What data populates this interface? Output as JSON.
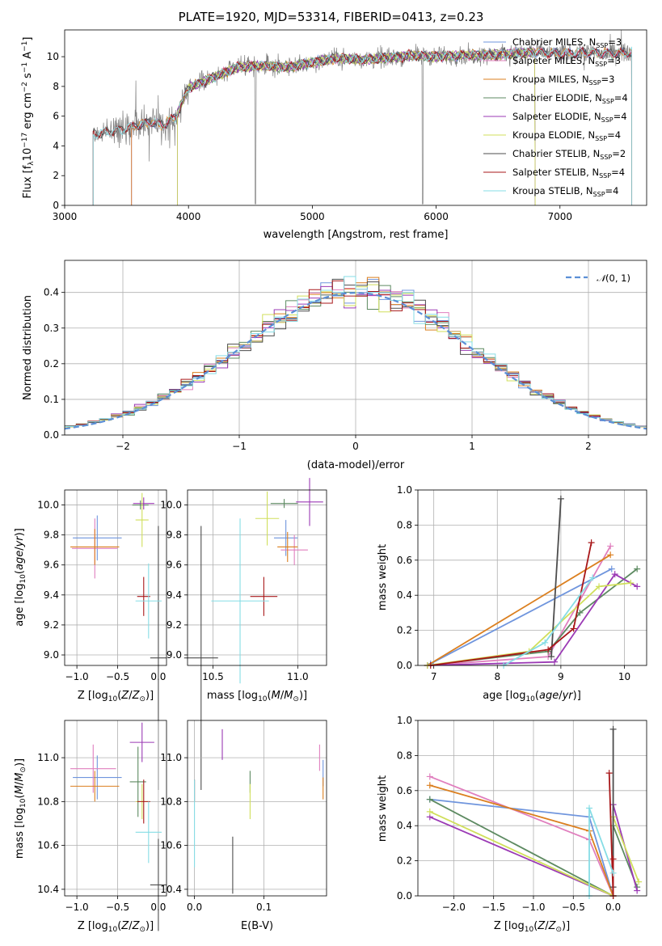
{
  "figure": {
    "title": "PLATE=1920, MJD=53314, FIBERID=0413, z=0.23"
  },
  "colors": {
    "Chabrier MILES": "#6f95dd",
    "Salpeter MILES": "#e07fbe",
    "Kroupa MILES": "#db7f1f",
    "Chabrier ELODIE": "#5d8a61",
    "Salpeter ELODIE": "#9b3ab5",
    "Kroupa ELODIE": "#d0df5b",
    "Chabrier STELIB": "#4d4d4d",
    "Salpeter STELIB": "#a81719",
    "Kroupa STELIB": "#86dde5",
    "data": "#808080",
    "normal": "#5b8fd6"
  },
  "chart_data": [
    {
      "id": "spectrum",
      "type": "line",
      "xlabel": "wavelength [Angstrom, rest frame]",
      "ylabel": "Flux [fλ10⁻¹⁷ erg cm⁻² s⁻¹ A⁻¹]",
      "xlim": [
        3000,
        7700
      ],
      "ylim": [
        0,
        11.8
      ],
      "xticks": [
        3000,
        4000,
        5000,
        6000,
        7000
      ],
      "yticks": [
        0,
        2,
        4,
        6,
        8,
        10
      ],
      "grid": false,
      "legend_position": "upper right",
      "legend": [
        {
          "model": "Chabrier MILES",
          "label": "Chabrier MILES, N",
          "sub": "SSP",
          "tail": "=3"
        },
        {
          "model": "Salpeter MILES",
          "label": "Salpeter MILES, N",
          "sub": "SSP",
          "tail": "=3"
        },
        {
          "model": "Kroupa MILES",
          "label": "Kroupa MILES, N",
          "sub": "SSP",
          "tail": "=3"
        },
        {
          "model": "Chabrier ELODIE",
          "label": "Chabrier ELODIE, N",
          "sub": "SSP",
          "tail": "=4"
        },
        {
          "model": "Salpeter ELODIE",
          "label": "Salpeter ELODIE, N",
          "sub": "SSP",
          "tail": "=4"
        },
        {
          "model": "Kroupa ELODIE",
          "label": "Kroupa ELODIE, N",
          "sub": "SSP",
          "tail": "=4"
        },
        {
          "model": "Chabrier STELIB",
          "label": "Chabrier STELIB, N",
          "sub": "SSP",
          "tail": "=2"
        },
        {
          "model": "Salpeter STELIB",
          "label": "Salpeter STELIB, N",
          "sub": "SSP",
          "tail": "=4"
        },
        {
          "model": "Kroupa STELIB",
          "label": "Kroupa STELIB, N",
          "sub": "SSP",
          "tail": "=4"
        }
      ],
      "continuum_points": [
        [
          3230,
          4.8
        ],
        [
          3400,
          5.0
        ],
        [
          3550,
          5.3
        ],
        [
          3700,
          5.6
        ],
        [
          3800,
          5.4
        ],
        [
          3900,
          6.0
        ],
        [
          4000,
          7.9
        ],
        [
          4200,
          8.6
        ],
        [
          4400,
          9.3
        ],
        [
          4600,
          9.4
        ],
        [
          4800,
          9.3
        ],
        [
          5000,
          9.6
        ],
        [
          5200,
          9.9
        ],
        [
          5400,
          9.8
        ],
        [
          5600,
          9.9
        ],
        [
          5800,
          10.1
        ],
        [
          6000,
          10.0
        ],
        [
          6200,
          10.1
        ],
        [
          6400,
          10.1
        ],
        [
          6600,
          10.2
        ],
        [
          6800,
          10.3
        ],
        [
          7000,
          10.2
        ],
        [
          7200,
          10.3
        ],
        [
          7400,
          10.2
        ],
        [
          7600,
          10.3
        ]
      ],
      "spectrum_ranges": {
        "data": [
          3230,
          7580
        ],
        "MILES": [
          3540,
          7580
        ],
        "ELODIE": [
          3910,
          6800
        ],
        "STELIB": [
          3230,
          7580
        ]
      }
    },
    {
      "id": "residuals",
      "type": "histogram",
      "xlabel": "(data-model)/error",
      "ylabel": "Normed distribution",
      "xlim": [
        -2.5,
        2.5
      ],
      "ylim": [
        0,
        0.49
      ],
      "xticks": [
        -2,
        -1,
        0,
        1,
        2
      ],
      "yticks": [
        0.0,
        0.1,
        0.2,
        0.3,
        0.4
      ],
      "grid": true,
      "legend_position": "upper right",
      "legend_label": "N(0,1)",
      "bin_width": 0.1,
      "bin_start": -2.5
    },
    {
      "id": "age-vs-Z",
      "type": "scatter",
      "xlabel": "Z [log10(Z/Z⊙)]",
      "ylabel": "age [log10(age/yr)]",
      "xlim": [
        -1.15,
        0.1
      ],
      "ylim": [
        8.93,
        10.1
      ],
      "xticks": [
        -1.0,
        -0.5,
        0.0
      ],
      "yticks": [
        9.0,
        9.2,
        9.4,
        9.6,
        9.8,
        10.0
      ],
      "grid": true,
      "points": [
        {
          "model": "Chabrier MILES",
          "x": -0.75,
          "y": 9.78,
          "xerr": 0.3,
          "yerr": 0.15
        },
        {
          "model": "Salpeter MILES",
          "x": -0.78,
          "y": 9.71,
          "xerr": 0.28,
          "yerr": 0.2
        },
        {
          "model": "Kroupa MILES",
          "x": -0.78,
          "y": 9.72,
          "xerr": 0.3,
          "yerr": 0.12
        },
        {
          "model": "Chabrier ELODIE",
          "x": -0.22,
          "y": 10.0,
          "xerr": 0.1,
          "yerr": 0.03
        },
        {
          "model": "Salpeter ELODIE",
          "x": -0.18,
          "y": 10.01,
          "xerr": 0.13,
          "yerr": 0.04
        },
        {
          "model": "Kroupa ELODIE",
          "x": -0.2,
          "y": 9.9,
          "xerr": 0.08,
          "yerr": 0.18
        },
        {
          "model": "Chabrier STELIB",
          "x": -0.0,
          "y": 8.98,
          "xerr": 0.1,
          "yerr": 0.88
        },
        {
          "model": "Salpeter STELIB",
          "x": -0.18,
          "y": 9.39,
          "xerr": 0.08,
          "yerr": 0.13
        },
        {
          "model": "Kroupa STELIB",
          "x": -0.12,
          "y": 9.36,
          "xerr": 0.16,
          "yerr": 0.25
        }
      ]
    },
    {
      "id": "age-vs-mass",
      "type": "scatter",
      "xlabel": "mass [log10(M/M⊙)]",
      "ylabel": "",
      "xlim": [
        10.35,
        11.17
      ],
      "ylim": [
        8.93,
        10.1
      ],
      "xticks": [
        10.5,
        11.0
      ],
      "yticks": [
        9.0,
        9.2,
        9.4,
        9.6,
        9.8,
        10.0
      ],
      "grid": true,
      "points": [
        {
          "model": "Chabrier MILES",
          "x": 10.93,
          "y": 9.78,
          "xerr": 0.07,
          "yerr": 0.12
        },
        {
          "model": "Salpeter MILES",
          "x": 10.98,
          "y": 9.7,
          "xerr": 0.08,
          "yerr": 0.1
        },
        {
          "model": "Kroupa MILES",
          "x": 10.94,
          "y": 9.72,
          "xerr": 0.06,
          "yerr": 0.1
        },
        {
          "model": "Chabrier ELODIE",
          "x": 10.92,
          "y": 10.01,
          "xerr": 0.08,
          "yerr": 0.03
        },
        {
          "model": "Salpeter ELODIE",
          "x": 11.07,
          "y": 10.02,
          "xerr": 0.08,
          "yerr": 0.16
        },
        {
          "model": "Kroupa ELODIE",
          "x": 10.82,
          "y": 9.91,
          "xerr": 0.07,
          "yerr": 0.18
        },
        {
          "model": "Chabrier STELIB",
          "x": 10.43,
          "y": 8.98,
          "xerr": 0.1,
          "yerr": 0.88
        },
        {
          "model": "Salpeter STELIB",
          "x": 10.8,
          "y": 9.39,
          "xerr": 0.08,
          "yerr": 0.13
        },
        {
          "model": "Kroupa STELIB",
          "x": 10.66,
          "y": 9.36,
          "xerr": 0.17,
          "yerr": 0.55
        }
      ]
    },
    {
      "id": "massweight-vs-age",
      "type": "line",
      "xlabel": "age [log10(age/yr)]",
      "ylabel": "mass weight",
      "xlim": [
        6.75,
        10.35
      ],
      "ylim": [
        0,
        1.0
      ],
      "xticks": [
        7,
        8,
        9,
        10
      ],
      "yticks": [
        0.0,
        0.2,
        0.4,
        0.6,
        0.8,
        1.0
      ],
      "grid": true,
      "series": [
        {
          "model": "Chabrier MILES",
          "x": [
            6.95,
            9.8
          ],
          "y": [
            0.01,
            0.55
          ]
        },
        {
          "model": "Salpeter MILES",
          "x": [
            6.9,
            8.8,
            9.78
          ],
          "y": [
            0.0,
            0.05,
            0.68
          ]
        },
        {
          "model": "Kroupa MILES",
          "x": [
            6.9,
            9.78
          ],
          "y": [
            0.0,
            0.63
          ]
        },
        {
          "model": "Chabrier ELODIE",
          "x": [
            6.9,
            8.8,
            9.3,
            10.2
          ],
          "y": [
            0.0,
            0.08,
            0.3,
            0.55
          ]
        },
        {
          "model": "Salpeter ELODIE",
          "x": [
            6.9,
            8.9,
            9.85,
            10.2
          ],
          "y": [
            0.0,
            0.02,
            0.52,
            0.45
          ]
        },
        {
          "model": "Kroupa ELODIE",
          "x": [
            6.9,
            8.5,
            9.6,
            10.1
          ],
          "y": [
            0.0,
            0.08,
            0.45,
            0.47
          ]
        },
        {
          "model": "Chabrier STELIB",
          "x": [
            8.85,
            9.0
          ],
          "y": [
            0.05,
            0.95
          ]
        },
        {
          "model": "Salpeter STELIB",
          "x": [
            6.95,
            8.8,
            9.2,
            9.48
          ],
          "y": [
            0.0,
            0.09,
            0.21,
            0.7
          ]
        },
        {
          "model": "Kroupa STELIB",
          "x": [
            8.1,
            8.75,
            9.5
          ],
          "y": [
            0.0,
            0.13,
            0.5
          ]
        }
      ]
    },
    {
      "id": "mass-vs-Z",
      "type": "scatter",
      "xlabel": "Z [log10(Z/Z⊙)]",
      "ylabel": "mass [log10(M/M⊙)]",
      "xlim": [
        -1.15,
        0.1
      ],
      "ylim": [
        10.37,
        11.17
      ],
      "xticks": [
        -1.0,
        -0.5,
        0.0
      ],
      "yticks": [
        10.4,
        10.6,
        10.8,
        11.0
      ],
      "grid": true,
      "points": [
        {
          "model": "Chabrier MILES",
          "x": -0.75,
          "y": 10.91,
          "xerr": 0.3,
          "yerr": 0.1
        },
        {
          "model": "Salpeter MILES",
          "x": -0.8,
          "y": 10.95,
          "xerr": 0.28,
          "yerr": 0.11
        },
        {
          "model": "Kroupa MILES",
          "x": -0.78,
          "y": 10.87,
          "xerr": 0.3,
          "yerr": 0.07
        },
        {
          "model": "Chabrier ELODIE",
          "x": -0.25,
          "y": 10.89,
          "xerr": 0.1,
          "yerr": 0.16
        },
        {
          "model": "Salpeter ELODIE",
          "x": -0.2,
          "y": 11.07,
          "xerr": 0.15,
          "yerr": 0.09
        },
        {
          "model": "Kroupa ELODIE",
          "x": -0.2,
          "y": 10.8,
          "xerr": 0.08,
          "yerr": 0.08
        },
        {
          "model": "Chabrier STELIB",
          "x": -0.0,
          "y": 10.42,
          "xerr": 0.1,
          "yerr": 0.21
        },
        {
          "model": "Salpeter STELIB",
          "x": -0.18,
          "y": 10.8,
          "xerr": 0.08,
          "yerr": 0.1
        },
        {
          "model": "Kroupa STELIB",
          "x": -0.12,
          "y": 10.66,
          "xerr": 0.16,
          "yerr": 0.14
        }
      ]
    },
    {
      "id": "mass-vs-ebv",
      "type": "scatter",
      "xlabel": "E(B-V)",
      "ylabel": "",
      "xlim": [
        -0.01,
        0.19
      ],
      "ylim": [
        10.37,
        11.17
      ],
      "xticks": [
        0.0,
        0.1
      ],
      "yticks": [
        10.4,
        10.6,
        10.8,
        11.0
      ],
      "grid": true,
      "points": [
        {
          "model": "Chabrier MILES",
          "x": 0.185,
          "y": 10.93,
          "yerr": 0.06
        },
        {
          "model": "Salpeter MILES",
          "x": 0.18,
          "y": 11.0,
          "yerr": 0.06
        },
        {
          "model": "Kroupa MILES",
          "x": 0.185,
          "y": 10.86,
          "yerr": 0.05
        },
        {
          "model": "Chabrier ELODIE",
          "x": 0.08,
          "y": 10.89,
          "yerr": 0.05
        },
        {
          "model": "Salpeter ELODIE",
          "x": 0.04,
          "y": 11.06,
          "yerr": 0.07
        },
        {
          "model": "Kroupa ELODIE",
          "x": 0.08,
          "y": 10.8,
          "yerr": 0.08
        },
        {
          "model": "Chabrier STELIB",
          "x": 0.055,
          "y": 10.51,
          "yerr": 0.13
        },
        {
          "model": "Salpeter STELIB",
          "x": 0.0,
          "y": 10.85,
          "yerr": 0.05
        },
        {
          "model": "Kroupa STELIB",
          "x": 0.0,
          "y": 10.7,
          "yerr": 0.2
        }
      ]
    },
    {
      "id": "massweight-vs-Z",
      "type": "line",
      "xlabel": "Z [log10(Z/Z⊙)]",
      "ylabel": "mass weight",
      "xlim": [
        -2.45,
        0.42
      ],
      "ylim": [
        0,
        1.0
      ],
      "xticks": [
        -2.0,
        -1.5,
        -1.0,
        -0.5,
        0.0
      ],
      "yticks": [
        0.0,
        0.2,
        0.4,
        0.6,
        0.8,
        1.0
      ],
      "grid": true,
      "series": [
        {
          "model": "Chabrier MILES",
          "x": [
            -2.3,
            -0.3,
            0.0
          ],
          "y": [
            0.55,
            0.45,
            0.0
          ]
        },
        {
          "model": "Salpeter MILES",
          "x": [
            -2.3,
            -0.3,
            0.0
          ],
          "y": [
            0.68,
            0.32,
            0.0
          ]
        },
        {
          "model": "Kroupa MILES",
          "x": [
            -2.3,
            -0.3,
            0.0
          ],
          "y": [
            0.63,
            0.37,
            0.0
          ]
        },
        {
          "model": "Chabrier ELODIE",
          "x": [
            -2.3,
            0.0,
            0.0,
            0.3
          ],
          "y": [
            0.55,
            0.0,
            0.4,
            0.05
          ]
        },
        {
          "model": "Salpeter ELODIE",
          "x": [
            -2.3,
            0.0,
            0.0,
            0.3
          ],
          "y": [
            0.45,
            0.0,
            0.52,
            0.03
          ]
        },
        {
          "model": "Kroupa ELODIE",
          "x": [
            -2.3,
            0.0,
            0.0,
            0.32
          ],
          "y": [
            0.48,
            0.0,
            0.45,
            0.08
          ]
        },
        {
          "model": "Chabrier STELIB",
          "x": [
            0.0,
            0.0
          ],
          "y": [
            0.05,
            0.95
          ]
        },
        {
          "model": "Salpeter STELIB",
          "x": [
            -0.05,
            0.0,
            0.0
          ],
          "y": [
            0.7,
            0.0,
            0.21
          ]
        },
        {
          "model": "Kroupa STELIB",
          "x": [
            -0.3,
            -0.3,
            0.0
          ],
          "y": [
            0.0,
            0.5,
            0.13
          ]
        }
      ]
    }
  ]
}
